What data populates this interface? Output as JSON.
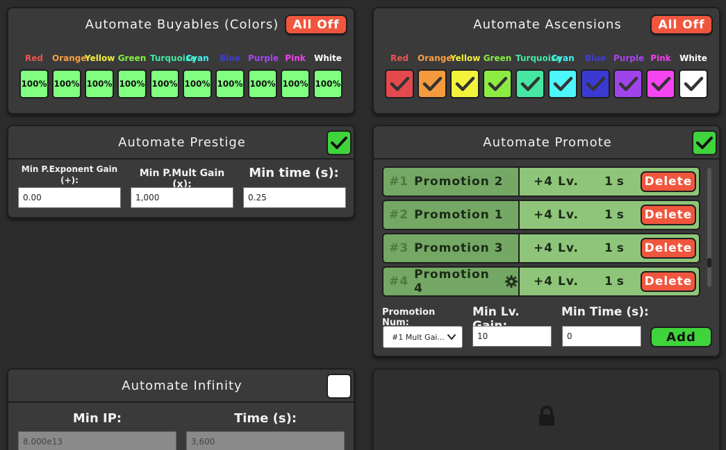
{
  "buyables": {
    "title": "Automate Buyables (Colors)",
    "all_off_label": "All Off",
    "colors": [
      {
        "name": "Red",
        "label_color": "#e9554f",
        "value": "100%"
      },
      {
        "name": "Orange",
        "label_color": "#f7a043",
        "value": "100%"
      },
      {
        "name": "Yellow",
        "label_color": "#f3f13c",
        "value": "100%"
      },
      {
        "name": "Green",
        "label_color": "#86ee44",
        "value": "100%"
      },
      {
        "name": "Turquoise",
        "label_color": "#43e6a1",
        "value": "100%"
      },
      {
        "name": "Cyan",
        "label_color": "#46f2f2",
        "value": "100%"
      },
      {
        "name": "Blue",
        "label_color": "#3d3dd6",
        "value": "100%"
      },
      {
        "name": "Purple",
        "label_color": "#a646ee",
        "value": "100%"
      },
      {
        "name": "Pink",
        "label_color": "#f043ef",
        "value": "100%"
      },
      {
        "name": "White",
        "label_color": "#ffffff",
        "value": "100%"
      }
    ]
  },
  "ascensions": {
    "title": "Automate Ascensions",
    "all_off_label": "All Off",
    "colors": [
      {
        "name": "Red",
        "label_color": "#e9554f",
        "swatch": "#e44a4d"
      },
      {
        "name": "Orange",
        "label_color": "#f7a043",
        "swatch": "#f49a3f"
      },
      {
        "name": "Yellow",
        "label_color": "#f3f13c",
        "swatch": "#f4f33b"
      },
      {
        "name": "Green",
        "label_color": "#86ee44",
        "swatch": "#8cec41"
      },
      {
        "name": "Turquoise",
        "label_color": "#43e6a1",
        "swatch": "#46e6a3"
      },
      {
        "name": "Cyan",
        "label_color": "#46f2f2",
        "swatch": "#4cf6f9"
      },
      {
        "name": "Blue",
        "label_color": "#3d3dd6",
        "swatch": "#3a3ad2"
      },
      {
        "name": "Purple",
        "label_color": "#a646ee",
        "swatch": "#9e44ea"
      },
      {
        "name": "Pink",
        "label_color": "#f043ef",
        "swatch": "#f445f0"
      },
      {
        "name": "White",
        "label_color": "#ffffff",
        "swatch": "#ffffff"
      }
    ]
  },
  "prestige": {
    "title": "Automate Prestige",
    "enabled": true,
    "fields": [
      {
        "label": "Min P.Exponent Gain (+):",
        "value": "0.00"
      },
      {
        "label": "Min P.Mult Gain (x):",
        "value": "1,000"
      },
      {
        "label": "Min time (s):",
        "value": "0.25"
      }
    ]
  },
  "promote": {
    "title": "Automate Promote",
    "enabled": true,
    "rows": [
      {
        "num": "#1",
        "name": "Promotion 2",
        "levels": "+4 Lv.",
        "time": "1 s",
        "delete_label": "Delete",
        "gear": false
      },
      {
        "num": "#2",
        "name": "Promotion 1",
        "levels": "+4 Lv.",
        "time": "1 s",
        "delete_label": "Delete",
        "gear": false
      },
      {
        "num": "#3",
        "name": "Promotion 3",
        "levels": "+4 Lv.",
        "time": "1 s",
        "delete_label": "Delete",
        "gear": false
      },
      {
        "num": "#4",
        "name": "Promotion 4",
        "levels": "+4 Lv.",
        "time": "1 s",
        "delete_label": "Delete",
        "gear": true
      }
    ],
    "scroll_position": 0.82,
    "promotion_num_label": "Promotion Num:",
    "promotion_num_value": "#1 Mult Gai...",
    "min_lv_label": "Min Lv. Gain:",
    "min_lv_value": "10",
    "min_time_label": "Min Time (s):",
    "min_time_value": "0",
    "add_label": "Add"
  },
  "infinity": {
    "title": "Automate Infinity",
    "enabled": false,
    "min_ip_label": "Min IP:",
    "min_ip_value": "8.000e13",
    "time_label": "Time (s):",
    "time_value": "3,600"
  },
  "locked": {
    "icon": "lock-icon"
  },
  "colors": {
    "accent_green": "#3fd33c",
    "danger_red": "#f0563e",
    "promo_green": "#8fc57a"
  }
}
